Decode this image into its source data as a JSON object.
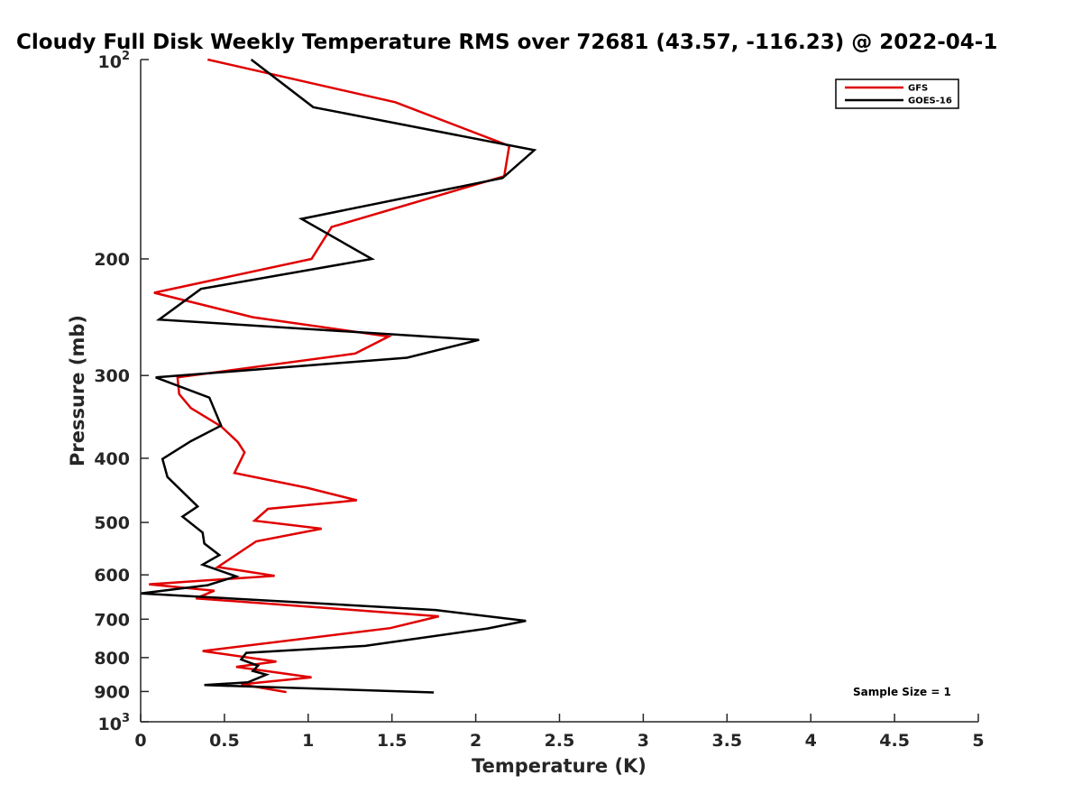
{
  "chart_data": {
    "type": "line",
    "title": "Cloudy Full Disk Weekly Temperature RMS over 72681 (43.57, -116.23) @ 2022-04-1",
    "xlabel": "Temperature (K)",
    "ylabel": "Pressure (mb)",
    "xlim": [
      0,
      5
    ],
    "ylim": [
      100,
      1000
    ],
    "y_scale": "log",
    "y_reversed": true,
    "grid": false,
    "legend_position": "top-right",
    "x_ticks": [
      "0",
      "0.5",
      "1",
      "1.5",
      "2",
      "2.5",
      "3",
      "3.5",
      "4",
      "4.5",
      "5"
    ],
    "y_ticks": [
      {
        "value": 100,
        "base": "10",
        "exp": "2"
      },
      {
        "value": 200,
        "label": "200"
      },
      {
        "value": 300,
        "label": "300"
      },
      {
        "value": 400,
        "label": "400"
      },
      {
        "value": 500,
        "label": "500"
      },
      {
        "value": 600,
        "label": "600"
      },
      {
        "value": 700,
        "label": "700"
      },
      {
        "value": 800,
        "label": "800"
      },
      {
        "value": 900,
        "label": "900"
      },
      {
        "value": 1000,
        "base": "10",
        "exp": "3"
      }
    ],
    "annotation": "Sample Size = 1",
    "series": [
      {
        "name": "GFS",
        "color": "#e00000",
        "points": [
          [
            0.4,
            100
          ],
          [
            1.52,
            116
          ],
          [
            2.2,
            135
          ],
          [
            2.17,
            150
          ],
          [
            1.14,
            179
          ],
          [
            1.02,
            200
          ],
          [
            0.08,
            225
          ],
          [
            0.67,
            245
          ],
          [
            1.48,
            262
          ],
          [
            1.28,
            278
          ],
          [
            0.22,
            302
          ],
          [
            0.23,
            320
          ],
          [
            0.3,
            336
          ],
          [
            0.48,
            358
          ],
          [
            0.58,
            378
          ],
          [
            0.62,
            392
          ],
          [
            0.56,
            421
          ],
          [
            0.99,
            443
          ],
          [
            1.29,
            463
          ],
          [
            0.76,
            477
          ],
          [
            0.68,
            497
          ],
          [
            1.08,
            511
          ],
          [
            0.69,
            534
          ],
          [
            0.46,
            584
          ],
          [
            0.8,
            602
          ],
          [
            0.05,
            620
          ],
          [
            0.44,
            634
          ],
          [
            0.33,
            651
          ],
          [
            1.78,
            693
          ],
          [
            1.49,
            722
          ],
          [
            0.37,
            782
          ],
          [
            0.81,
            811
          ],
          [
            0.57,
            826
          ],
          [
            1.02,
            857
          ],
          [
            0.6,
            878
          ],
          [
            0.87,
            902
          ]
        ]
      },
      {
        "name": "GOES-16",
        "color": "#000000",
        "points": [
          [
            0.66,
            100
          ],
          [
            1.03,
            118
          ],
          [
            2.35,
            137
          ],
          [
            2.16,
            151
          ],
          [
            0.96,
            174
          ],
          [
            1.38,
            200
          ],
          [
            0.36,
            222
          ],
          [
            0.11,
            247
          ],
          [
            2.02,
            265
          ],
          [
            1.59,
            282
          ],
          [
            0.09,
            302
          ],
          [
            0.41,
            324
          ],
          [
            0.48,
            357
          ],
          [
            0.3,
            377
          ],
          [
            0.13,
            401
          ],
          [
            0.16,
            427
          ],
          [
            0.34,
            473
          ],
          [
            0.25,
            490
          ],
          [
            0.37,
            518
          ],
          [
            0.38,
            538
          ],
          [
            0.47,
            560
          ],
          [
            0.37,
            579
          ],
          [
            0.57,
            603
          ],
          [
            0.4,
            622
          ],
          [
            0.0,
            640
          ],
          [
            1.76,
            678
          ],
          [
            2.3,
            704
          ],
          [
            2.07,
            723
          ],
          [
            1.34,
            768
          ],
          [
            0.63,
            787
          ],
          [
            0.6,
            805
          ],
          [
            0.7,
            823
          ],
          [
            0.67,
            838
          ],
          [
            0.75,
            849
          ],
          [
            0.64,
            872
          ],
          [
            0.38,
            880
          ],
          [
            1.75,
            903
          ]
        ]
      }
    ]
  }
}
